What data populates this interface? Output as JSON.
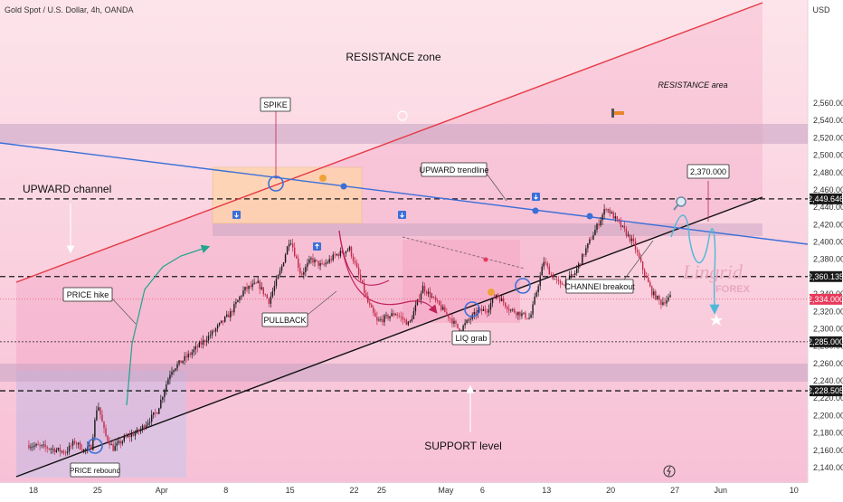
{
  "header": {
    "symbol": "Gold Spot / U.S. Dollar, 4h, OANDA"
  },
  "currency": "USD",
  "chart_data": {
    "type": "candlestick",
    "title": "Gold Spot / U.S. Dollar, 4h, OANDA",
    "y_range": [
      2130,
      2580
    ],
    "y_ticks": [
      2140,
      2160,
      2180,
      2200,
      2220,
      2240,
      2260,
      2280,
      2300,
      2320,
      2340,
      2360,
      2380,
      2400,
      2420,
      2440,
      2460,
      2480,
      2500,
      2520,
      2540,
      2560
    ],
    "x_ticks": [
      {
        "label": "18",
        "t": 0.5
      },
      {
        "label": "25",
        "t": 7.5
      },
      {
        "label": "Apr",
        "t": 14.5
      },
      {
        "label": "8",
        "t": 21.5
      },
      {
        "label": "15",
        "t": 28.5
      },
      {
        "label": "22",
        "t": 35.5
      },
      {
        "label": "25",
        "t": 38.5
      },
      {
        "label": "May",
        "t": 45.5
      },
      {
        "label": "6",
        "t": 49.5
      },
      {
        "label": "13",
        "t": 56.5
      },
      {
        "label": "20",
        "t": 63.5
      },
      {
        "label": "27",
        "t": 70.5
      },
      {
        "label": "Jun",
        "t": 75.5
      },
      {
        "label": "10",
        "t": 83.5
      }
    ],
    "price_series": [
      {
        "t": 0,
        "p": 2166
      },
      {
        "t": 2,
        "p": 2163
      },
      {
        "t": 4,
        "p": 2158
      },
      {
        "t": 5,
        "p": 2170
      },
      {
        "t": 6,
        "p": 2160
      },
      {
        "t": 6.8,
        "p": 2164
      },
      {
        "t": 7.5,
        "p": 2215
      },
      {
        "t": 8.3,
        "p": 2178
      },
      {
        "t": 9.2,
        "p": 2162
      },
      {
        "t": 10.5,
        "p": 2174
      },
      {
        "t": 12,
        "p": 2182
      },
      {
        "t": 14,
        "p": 2205
      },
      {
        "t": 15.5,
        "p": 2252
      },
      {
        "t": 17.5,
        "p": 2270
      },
      {
        "t": 20,
        "p": 2295
      },
      {
        "t": 22,
        "p": 2318
      },
      {
        "t": 23.5,
        "p": 2345
      },
      {
        "t": 25,
        "p": 2352
      },
      {
        "t": 26.2,
        "p": 2332
      },
      {
        "t": 27.5,
        "p": 2368
      },
      {
        "t": 28.5,
        "p": 2405
      },
      {
        "t": 29.7,
        "p": 2362
      },
      {
        "t": 30.8,
        "p": 2380
      },
      {
        "t": 32,
        "p": 2372
      },
      {
        "t": 33.5,
        "p": 2385
      },
      {
        "t": 35,
        "p": 2392
      },
      {
        "t": 35.8,
        "p": 2368
      },
      {
        "t": 37,
        "p": 2330
      },
      {
        "t": 38,
        "p": 2308
      },
      {
        "t": 40,
        "p": 2318
      },
      {
        "t": 41.5,
        "p": 2305
      },
      {
        "t": 43,
        "p": 2348
      },
      {
        "t": 44.5,
        "p": 2330
      },
      {
        "t": 46,
        "p": 2312
      },
      {
        "t": 47,
        "p": 2298
      },
      {
        "t": 48,
        "p": 2310
      },
      {
        "t": 49,
        "p": 2320
      },
      {
        "t": 50,
        "p": 2322
      },
      {
        "t": 51,
        "p": 2340
      },
      {
        "t": 52.5,
        "p": 2322
      },
      {
        "t": 53.5,
        "p": 2318
      },
      {
        "t": 54.7,
        "p": 2312
      },
      {
        "t": 56.2,
        "p": 2378
      },
      {
        "t": 57,
        "p": 2362
      },
      {
        "t": 58,
        "p": 2350
      },
      {
        "t": 59.5,
        "p": 2362
      },
      {
        "t": 60.5,
        "p": 2385
      },
      {
        "t": 62,
        "p": 2418
      },
      {
        "t": 63,
        "p": 2440
      },
      {
        "t": 64.5,
        "p": 2420
      },
      {
        "t": 66,
        "p": 2398
      },
      {
        "t": 67.3,
        "p": 2360
      },
      {
        "t": 68,
        "p": 2342
      },
      {
        "t": 69,
        "p": 2330
      },
      {
        "t": 70,
        "p": 2336
      }
    ],
    "horizontal_levels": [
      {
        "label": "2,449.646",
        "value": 2449.646
      },
      {
        "label": "2,360.135",
        "value": 2360.135
      },
      {
        "label": "2,285.000",
        "value": 2285
      },
      {
        "label": "2,228.505",
        "value": 2228.505
      }
    ],
    "current_price": {
      "label": "2,334.000",
      "value": 2334
    },
    "target_label": "2,370.000"
  },
  "annotations": {
    "resistance_zone": "RESISTANCE zone",
    "resistance_area": "RESISTANCE area",
    "upward_channel": "UPWARD channel",
    "support_level": "SUPPORT level",
    "spike": "SPIKE",
    "upward_trendline": "UPWARD trendline",
    "price_hike": "PRICE hike",
    "pullback": "PULLBACK",
    "liq_grab": "LIQ grab",
    "channel_breakout": "CHANNEl breakout",
    "price_rebound": "PRICE rebound",
    "brand_main": "Lingrid",
    "brand_sub": "FOREX"
  },
  "colors": {
    "resistance_line": "#e53945",
    "trendline": "#3a6fd8",
    "support_line": "#111111",
    "up_candle": "#1a1a1a",
    "down_candle": "#c42a4a",
    "price_tag": "#e8395b",
    "arrow_teal": "#1fa58c",
    "pullback_arrow": "#c0225a",
    "projection": "#4fb8d8"
  }
}
